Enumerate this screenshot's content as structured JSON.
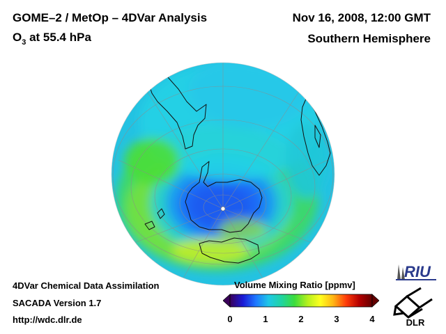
{
  "header": {
    "title": "GOME–2 / MetOp – 4DVar Analysis",
    "subtitle_prefix": "O",
    "subtitle_sub": "3",
    "subtitle_suffix": " at 55.4 hPa",
    "date": "Nov 16, 2008, 12:00 GMT",
    "region": "Southern Hemisphere"
  },
  "footer": {
    "line1": "4DVar Chemical Data Assimilation",
    "line2": "SACADA Version 1.7",
    "line3": "http://wdc.dlr.de"
  },
  "colorbar": {
    "title": "Volume Mixing Ratio [ppmv]",
    "ticks": [
      "0",
      "1",
      "2",
      "3",
      "4"
    ],
    "min": 0,
    "max": 4,
    "colors": [
      "#3a005a",
      "#1a1ad6",
      "#1e78ff",
      "#1fc8e6",
      "#20d4a0",
      "#3cdc3c",
      "#b4f01e",
      "#ffff20",
      "#ffb414",
      "#ff3c0a",
      "#b40000",
      "#640000"
    ]
  },
  "logos": {
    "riu": "RIU",
    "dlr": "DLR"
  }
}
